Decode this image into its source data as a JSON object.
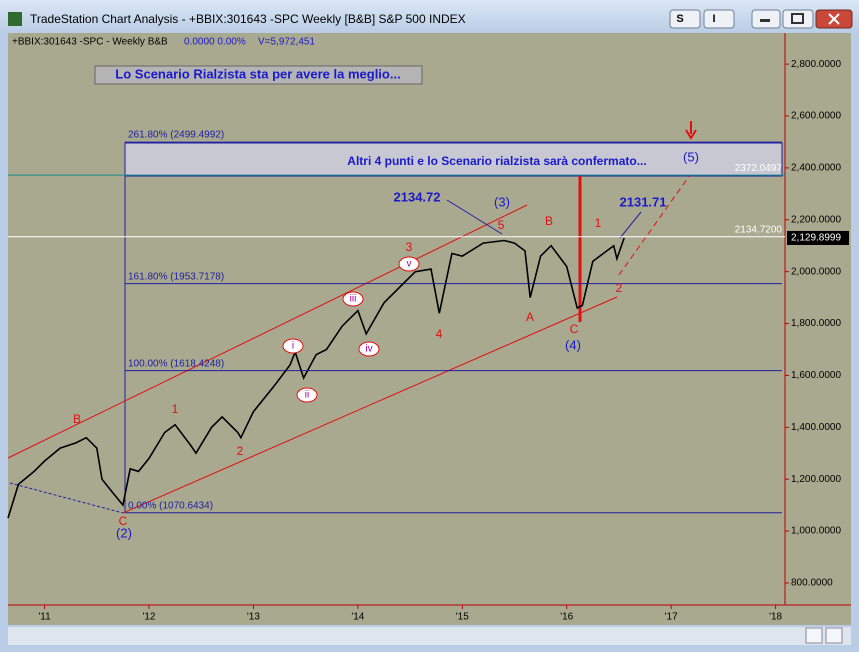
{
  "window": {
    "title": "TradeStation Chart Analysis - +BBIX:301643 -SPC Weekly [B&B] S&P 500 INDEX",
    "buttons": [
      "S",
      "I"
    ]
  },
  "info": {
    "symbol": "+BBIX:301643 -SPC - Weekly  B&B",
    "values": "0.0000  0.00%",
    "volume": "V=5,972,451"
  },
  "chart_data": {
    "type": "line",
    "color": "#000000",
    "x": [
      2010.65,
      2010.75,
      2010.9,
      2011.0,
      2011.15,
      2011.3,
      2011.4,
      2011.5,
      2011.55,
      2011.65,
      2011.75,
      2011.82,
      2011.9,
      2012.0,
      2012.15,
      2012.25,
      2012.4,
      2012.45,
      2012.6,
      2012.7,
      2012.85,
      2012.88,
      2013.0,
      2013.2,
      2013.35,
      2013.4,
      2013.48,
      2013.6,
      2013.7,
      2013.85,
      2014.0,
      2014.08,
      2014.25,
      2014.45,
      2014.55,
      2014.7,
      2014.78,
      2014.9,
      2015.0,
      2015.2,
      2015.4,
      2015.5,
      2015.6,
      2015.65,
      2015.75,
      2015.85,
      2016.0,
      2016.1,
      2016.15,
      2016.25,
      2016.35,
      2016.45,
      2016.48,
      2016.55
    ],
    "values": [
      1050,
      1180,
      1230,
      1270,
      1320,
      1340,
      1360,
      1320,
      1200,
      1150,
      1100,
      1240,
      1230,
      1280,
      1380,
      1410,
      1330,
      1300,
      1400,
      1440,
      1380,
      1360,
      1460,
      1560,
      1640,
      1690,
      1590,
      1680,
      1700,
      1790,
      1850,
      1760,
      1880,
      1960,
      2000,
      2010,
      1840,
      2070,
      2060,
      2110,
      2120,
      2110,
      2080,
      1900,
      2060,
      2100,
      2020,
      1860,
      1870,
      2040,
      2070,
      2100,
      2050,
      2130
    ],
    "xlim": [
      2010.65,
      2018.09
    ],
    "xticks": [
      {
        "value": 2011,
        "label": "'11"
      },
      {
        "value": 2012,
        "label": "'12"
      },
      {
        "value": 2013,
        "label": "'13"
      },
      {
        "value": 2014,
        "label": "'14"
      },
      {
        "value": 2015,
        "label": "'15"
      },
      {
        "value": 2016,
        "label": "'16"
      },
      {
        "value": 2017,
        "label": "'17"
      },
      {
        "value": 2018,
        "label": "'18"
      }
    ],
    "ylim": [
      715,
      2920
    ],
    "yticks": [
      {
        "value": 800,
        "label": "800.0000"
      },
      {
        "value": 1000,
        "label": "1,000.0000"
      },
      {
        "value": 1200,
        "label": "1,200.0000"
      },
      {
        "value": 1400,
        "label": "1,400.0000"
      },
      {
        "value": 1600,
        "label": "1,600.0000"
      },
      {
        "value": 1800,
        "label": "1,800.0000"
      },
      {
        "value": 2000,
        "label": "2,000.0000"
      },
      {
        "value": 2200,
        "label": "2,200.0000"
      },
      {
        "value": 2400,
        "label": "2,400.0000"
      },
      {
        "value": 2600,
        "label": "2,600.0000"
      },
      {
        "value": 2800,
        "label": "2,800.0000"
      }
    ],
    "fib_levels": [
      {
        "value": 2499.4992,
        "label": "261.80% (2499.4992)"
      },
      {
        "value": 1953.7178,
        "label": "161.80% (1953.7178)"
      },
      {
        "value": 1618.4248,
        "label": "100.00% (1618.4248)"
      },
      {
        "value": 1070.6434,
        "label": "0.00% (1070.6434)"
      }
    ],
    "price_lines": [
      {
        "value": 2372.0497,
        "label": "2372.0497"
      },
      {
        "value": 2134.72,
        "label": "2134.7200"
      }
    ],
    "last_price": {
      "value": 2129.8999,
      "label": "2,129.8999"
    },
    "annotations": [
      "Lo Scenario Rialzista sta per avere la meglio...",
      "Altri 4 punti e lo Scenario rialzista sarà confermato...",
      "2134.72",
      "(3)",
      "2131.71",
      "(5)",
      "(4)",
      "(2)",
      "B",
      "1",
      "2",
      "3",
      "4",
      "5",
      "A",
      "B",
      "C",
      "1",
      "2",
      "C",
      "i",
      "ii",
      "iii",
      "iv",
      "v"
    ]
  }
}
